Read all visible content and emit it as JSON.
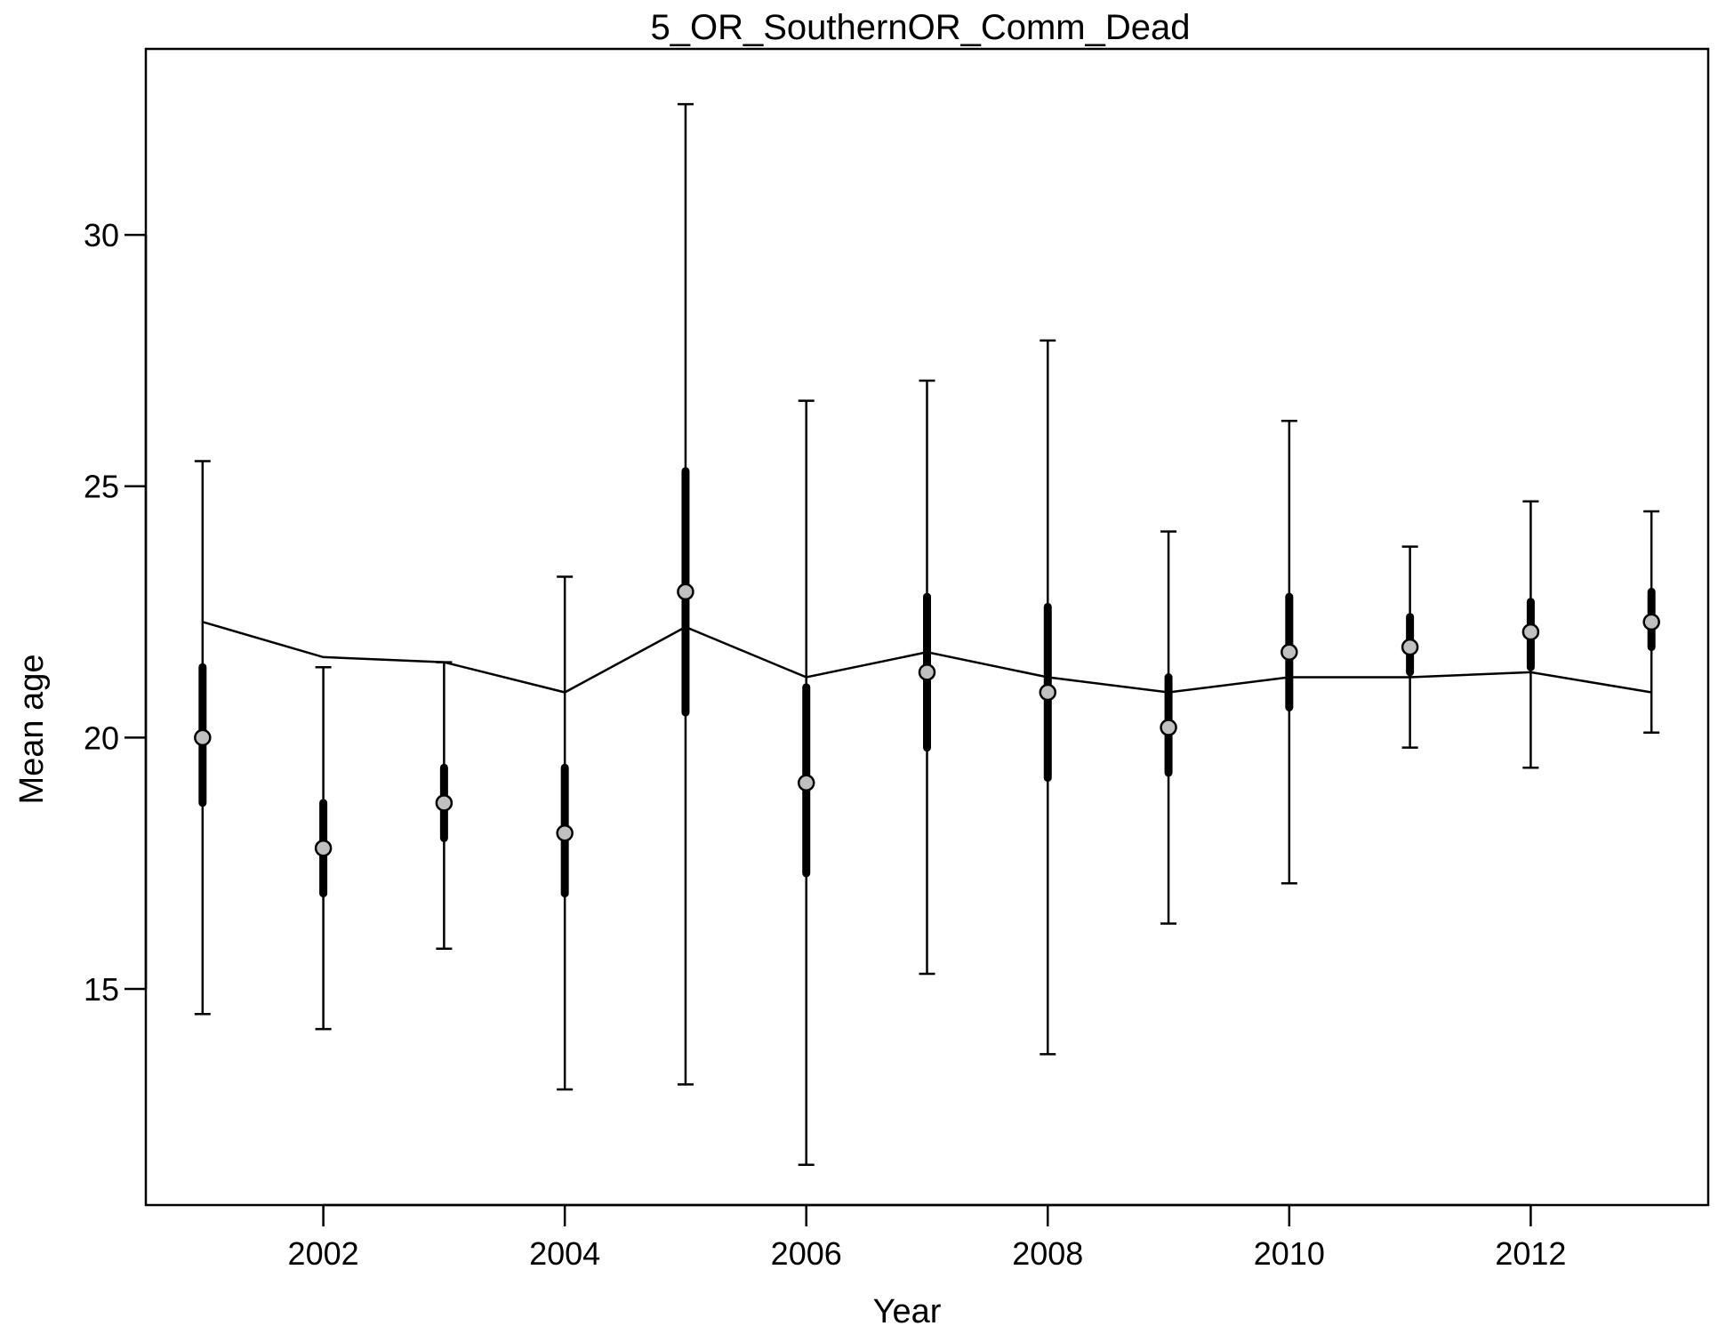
{
  "chart_data": {
    "type": "line",
    "title": "5_OR_SouthernOR_Comm_Dead",
    "xlabel": "Year",
    "ylabel": "Mean age",
    "xlim": [
      2000.53,
      2013.47
    ],
    "ylim": [
      10.7,
      33.7
    ],
    "x_ticks": [
      2002,
      2004,
      2006,
      2008,
      2010,
      2012
    ],
    "x_tick_labels": [
      "2002",
      "2004",
      "2006",
      "2008",
      "2010",
      "2012"
    ],
    "y_ticks": [
      15,
      20,
      25,
      30
    ],
    "y_tick_labels": [
      "15",
      "20",
      "25",
      "30"
    ],
    "grid": false,
    "legend": "none",
    "series": [
      {
        "type": "points-with-intervals",
        "x": [
          2001,
          2002,
          2003,
          2004,
          2005,
          2006,
          2007,
          2008,
          2009,
          2010,
          2011,
          2012,
          2013
        ],
        "observed": [
          20.0,
          17.8,
          18.7,
          18.1,
          22.9,
          19.1,
          21.3,
          20.9,
          20.2,
          21.7,
          21.8,
          22.1,
          22.3
        ],
        "inner_low": [
          18.7,
          16.9,
          18.0,
          16.9,
          20.5,
          17.3,
          19.8,
          19.2,
          19.3,
          20.6,
          21.3,
          21.4,
          21.8
        ],
        "inner_high": [
          21.4,
          18.7,
          19.4,
          19.4,
          25.3,
          21.0,
          22.8,
          22.6,
          21.2,
          22.8,
          22.4,
          22.7,
          22.9
        ],
        "outer_low": [
          14.5,
          14.2,
          15.8,
          13.0,
          13.1,
          11.5,
          15.3,
          13.7,
          16.3,
          17.1,
          19.8,
          19.4,
          20.1
        ],
        "outer_high": [
          25.5,
          21.4,
          21.5,
          23.2,
          32.6,
          26.7,
          27.1,
          27.9,
          24.1,
          26.3,
          23.8,
          24.7,
          24.5
        ]
      },
      {
        "type": "line",
        "x": [
          2001,
          2002,
          2003,
          2004,
          2005,
          2006,
          2007,
          2008,
          2009,
          2010,
          2011,
          2012,
          2013
        ],
        "expected": [
          22.3,
          21.6,
          21.5,
          20.9,
          22.2,
          21.2,
          21.7,
          21.2,
          20.9,
          21.2,
          21.2,
          21.3,
          20.9
        ]
      }
    ],
    "colors": {
      "point_fill": "#c0c0c0",
      "ink": "#000000",
      "background": "#ffffff"
    }
  }
}
